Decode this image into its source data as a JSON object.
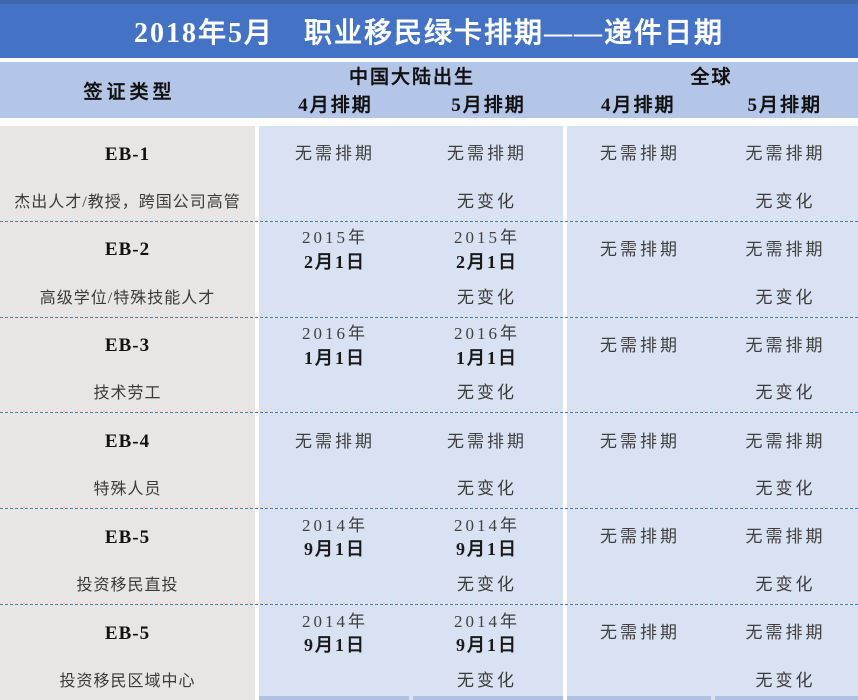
{
  "title": "2018年5月　职业移民绿卡排期——递件日期",
  "header": {
    "visa_type_label": "签证类型",
    "china_group_label": "中国大陆出生",
    "global_group_label": "全球",
    "china_apr_label": "4月排期",
    "china_may_label": "5月排期",
    "global_apr_label": "4月排期",
    "global_may_label": "5月排期"
  },
  "colors": {
    "title_bar": "#4472C4",
    "title_bar_top_edge": "#3E66AC",
    "header_band": "#B4C6E7",
    "data_bg": "#D9E2F3",
    "visa_col_bg": "#E8E5E4",
    "separator": "#FFFFFF",
    "dashed_divider": "#4A7DC1",
    "bottom_cell_border": "#B0C1E1",
    "title_text": "#FFFFFF",
    "text_dark": "#111111",
    "text_value": "#3F3F3F"
  },
  "rows": [
    {
      "category": "EB-1",
      "description": "杰出人才/教授，跨国公司高管",
      "china_apr": {
        "l1": "无需排期",
        "l2": ""
      },
      "china_may": {
        "l1": "无需排期",
        "l2": ""
      },
      "global_apr": {
        "l1": "无需排期",
        "l2": ""
      },
      "global_may": {
        "l1": "无需排期",
        "l2": ""
      },
      "changes": {
        "china": "无变化",
        "global": "无变化"
      }
    },
    {
      "category": "EB-2",
      "description": "高级学位/特殊技能人才",
      "china_apr": {
        "l1": "2015年",
        "l2": "2月1日"
      },
      "china_may": {
        "l1": "2015年",
        "l2": "2月1日"
      },
      "global_apr": {
        "l1": "无需排期",
        "l2": ""
      },
      "global_may": {
        "l1": "无需排期",
        "l2": ""
      },
      "changes": {
        "china": "无变化",
        "global": "无变化"
      }
    },
    {
      "category": "EB-3",
      "description": "技术劳工",
      "china_apr": {
        "l1": "2016年",
        "l2": "1月1日"
      },
      "china_may": {
        "l1": "2016年",
        "l2": "1月1日"
      },
      "global_apr": {
        "l1": "无需排期",
        "l2": ""
      },
      "global_may": {
        "l1": "无需排期",
        "l2": ""
      },
      "changes": {
        "china": "无变化",
        "global": "无变化"
      }
    },
    {
      "category": "EB-4",
      "description": "特殊人员",
      "china_apr": {
        "l1": "无需排期",
        "l2": ""
      },
      "china_may": {
        "l1": "无需排期",
        "l2": ""
      },
      "global_apr": {
        "l1": "无需排期",
        "l2": ""
      },
      "global_may": {
        "l1": "无需排期",
        "l2": ""
      },
      "changes": {
        "china": "无变化",
        "global": "无变化"
      }
    },
    {
      "category": "EB-5",
      "description": "投资移民直投",
      "china_apr": {
        "l1": "2014年",
        "l2": "9月1日"
      },
      "china_may": {
        "l1": "2014年",
        "l2": "9月1日"
      },
      "global_apr": {
        "l1": "无需排期",
        "l2": ""
      },
      "global_may": {
        "l1": "无需排期",
        "l2": ""
      },
      "changes": {
        "china": "无变化",
        "global": "无变化"
      }
    },
    {
      "category": "EB-5",
      "description": "投资移民区域中心",
      "china_apr": {
        "l1": "2014年",
        "l2": "9月1日"
      },
      "china_may": {
        "l1": "2014年",
        "l2": "9月1日"
      },
      "global_apr": {
        "l1": "无需排期",
        "l2": ""
      },
      "global_may": {
        "l1": "无需排期",
        "l2": ""
      },
      "changes": {
        "china": "无变化",
        "global": "无变化"
      }
    }
  ],
  "chart_data": {
    "type": "table",
    "title": "2018年5月　职业移民绿卡排期——递件日期",
    "column_groups": [
      "签证类型",
      "中国大陆出生",
      "全球"
    ],
    "columns": [
      "签证类型",
      "中国大陆出生 4月排期",
      "中国大陆出生 5月排期",
      "全球 4月排期",
      "全球 5月排期"
    ],
    "rows": [
      [
        "EB-1（杰出人才/教授，跨国公司高管）",
        "无需排期",
        "无需排期（无变化）",
        "无需排期",
        "无需排期（无变化）"
      ],
      [
        "EB-2（高级学位/特殊技能人才）",
        "2015年2月1日",
        "2015年2月1日（无变化）",
        "无需排期",
        "无需排期（无变化）"
      ],
      [
        "EB-3（技术劳工）",
        "2016年1月1日",
        "2016年1月1日（无变化）",
        "无需排期",
        "无需排期（无变化）"
      ],
      [
        "EB-4（特殊人员）",
        "无需排期",
        "无需排期（无变化）",
        "无需排期",
        "无需排期（无变化）"
      ],
      [
        "EB-5（投资移民直投）",
        "2014年9月1日",
        "2014年9月1日（无变化）",
        "无需排期",
        "无需排期（无变化）"
      ],
      [
        "EB-5（投资移民区域中心）",
        "2014年9月1日",
        "2014年9月1日（无变化）",
        "无需排期",
        "无需排期（无变化）"
      ]
    ]
  }
}
